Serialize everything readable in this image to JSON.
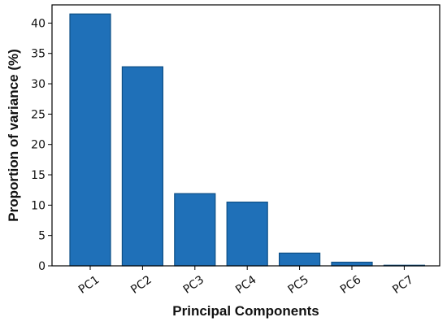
{
  "chart_data": {
    "type": "bar",
    "title": "",
    "xlabel": "Principal Components",
    "ylabel": "Proportion of variance (%)",
    "categories": [
      "PC1",
      "PC2",
      "PC3",
      "PC4",
      "PC5",
      "PC6",
      "PC7"
    ],
    "values": [
      41.5,
      32.8,
      11.9,
      10.5,
      2.1,
      0.6,
      0.1
    ],
    "ylim": [
      0,
      43
    ],
    "yticks": [
      0,
      5,
      10,
      15,
      20,
      25,
      30,
      35,
      40
    ],
    "grid": false,
    "bar_color": "#1f70b8",
    "bar_edge_color": "#0d4f86"
  }
}
